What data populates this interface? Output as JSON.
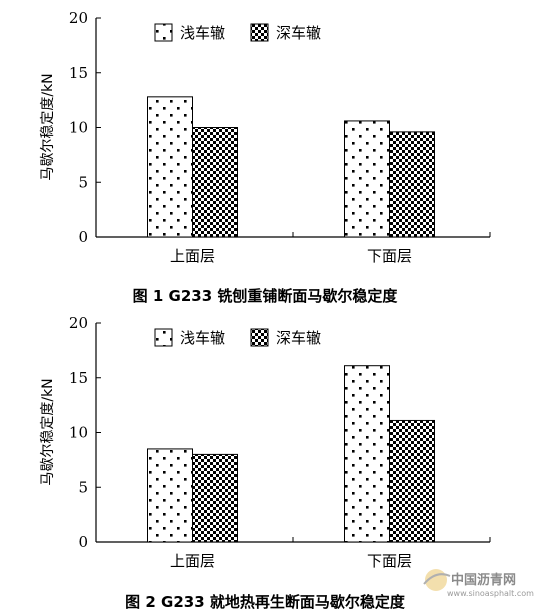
{
  "chart_data": [
    {
      "type": "bar",
      "caption": "图 1   G233 铣刨重铺断面马歇尔稳定度",
      "categories": [
        "上面层",
        "下面层"
      ],
      "series": [
        {
          "name": "浅车辙",
          "values": [
            12.8,
            10.6
          ]
        },
        {
          "name": "深车辙",
          "values": [
            10.0,
            9.6
          ]
        }
      ],
      "ylabel": "马歇尔稳定度/kN",
      "ylim": [
        0,
        20
      ],
      "yticks": [
        "0",
        "5",
        "10",
        "15",
        "20"
      ],
      "legend": "top"
    },
    {
      "type": "bar",
      "caption": "图 2   G233 就地热再生断面马歇尔稳定度",
      "categories": [
        "上面层",
        "下面层"
      ],
      "series": [
        {
          "name": "浅车辙",
          "values": [
            8.5,
            16.1
          ]
        },
        {
          "name": "深车辙",
          "values": [
            8.0,
            11.1
          ]
        }
      ],
      "ylabel": "马歇尔稳定度/kN",
      "ylim": [
        0,
        20
      ],
      "yticks": [
        "0",
        "5",
        "10",
        "15",
        "20"
      ],
      "legend": "top"
    }
  ],
  "watermark": {
    "name": "中国沥青网",
    "url": "www.sinoasphalt.com"
  }
}
